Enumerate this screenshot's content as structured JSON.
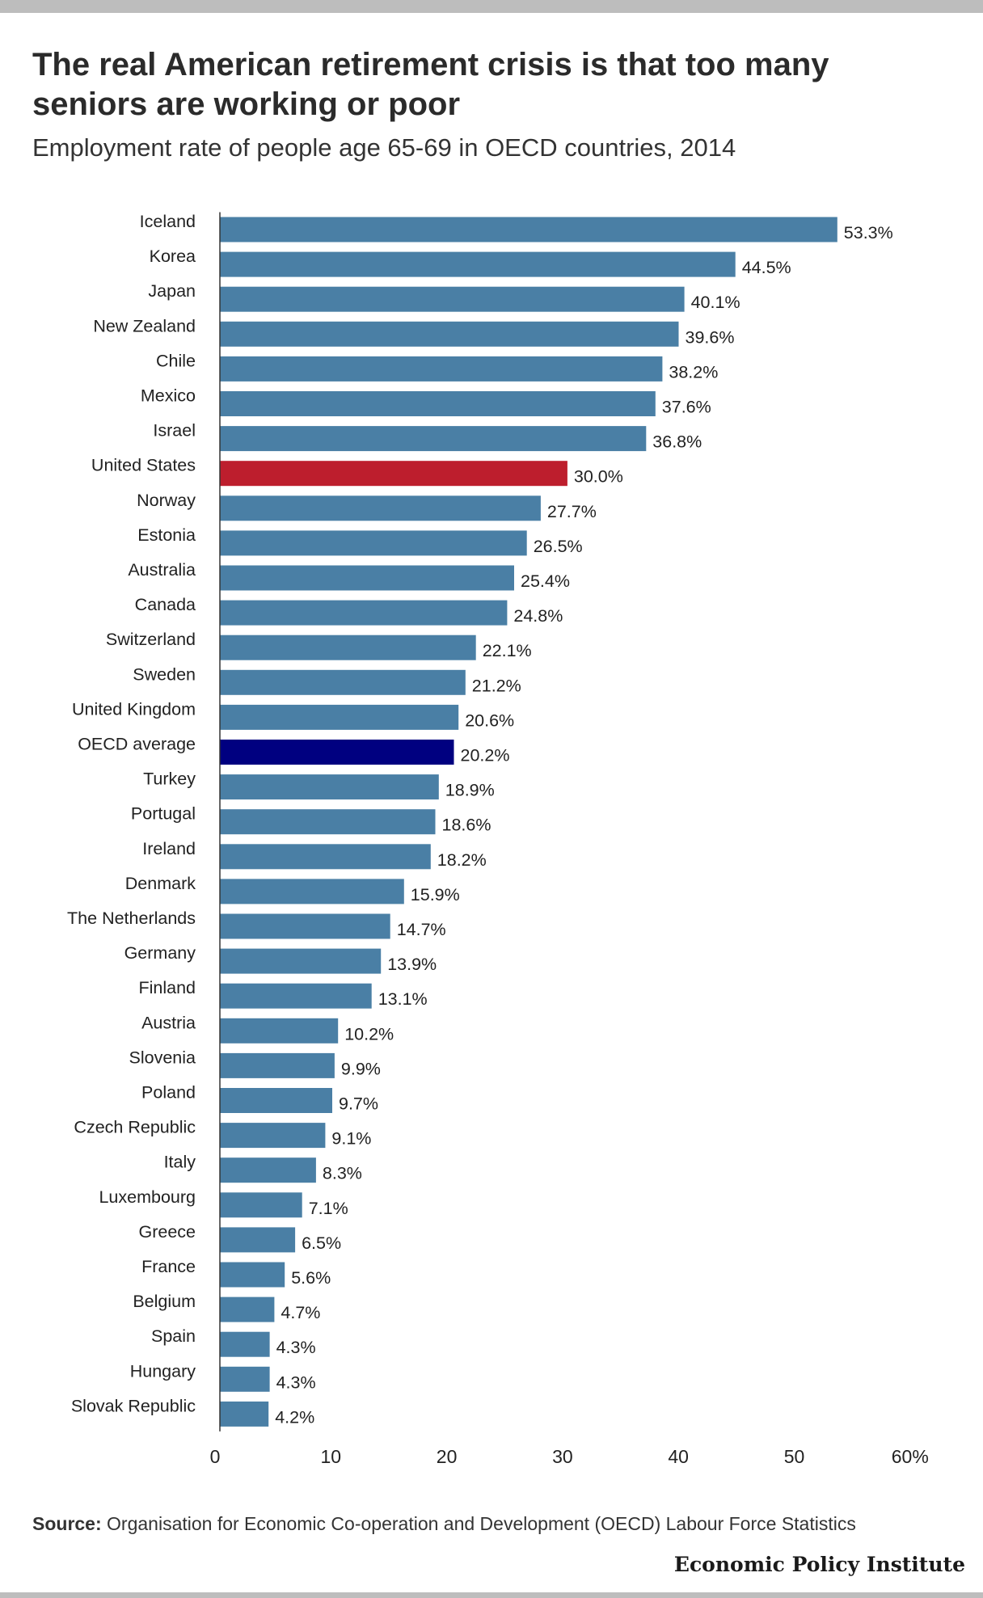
{
  "title": "The real American retirement crisis is that too many seniors are working or poor",
  "subtitle": "Employment rate of people age 65-69 in OECD countries, 2014",
  "source_label": "Source:",
  "source_text": "Organisation for Economic Co-operation and Development (OECD) Labour Force Statistics",
  "brand": "Economic Policy Institute",
  "colors": {
    "bar": "#4a7fa5",
    "highlight_us": "#bd1e2d",
    "highlight_oecd": "#000080",
    "text": "#222222"
  },
  "chart_data": {
    "type": "bar",
    "orientation": "horizontal",
    "title": "The real American retirement crisis is that too many seniors are working or poor",
    "subtitle": "Employment rate of people age 65-69 in OECD countries, 2014",
    "xlabel": "",
    "ylabel": "",
    "xlim": [
      0,
      60
    ],
    "x_ticks": [
      {
        "value": 0,
        "label": "0"
      },
      {
        "value": 10,
        "label": "10"
      },
      {
        "value": 20,
        "label": "20"
      },
      {
        "value": 30,
        "label": "30"
      },
      {
        "value": 40,
        "label": "40"
      },
      {
        "value": 50,
        "label": "50"
      },
      {
        "value": 60,
        "label": "60%"
      }
    ],
    "grid": false,
    "legend": "none",
    "categories": [
      "Iceland",
      "Korea",
      "Japan",
      "New Zealand",
      "Chile",
      "Mexico",
      "Israel",
      "United States",
      "Norway",
      "Estonia",
      "Australia",
      "Canada",
      "Switzerland",
      "Sweden",
      "United Kingdom",
      "OECD average",
      "Turkey",
      "Portugal",
      "Ireland",
      "Denmark",
      "The Netherlands",
      "Germany",
      "Finland",
      "Austria",
      "Slovenia",
      "Poland",
      "Czech Republic",
      "Italy",
      "Luxembourg",
      "Greece",
      "France",
      "Belgium",
      "Spain",
      "Hungary",
      "Slovak Republic"
    ],
    "values": [
      53.3,
      44.5,
      40.1,
      39.6,
      38.2,
      37.6,
      36.8,
      30.0,
      27.7,
      26.5,
      25.4,
      24.8,
      22.1,
      21.2,
      20.6,
      20.2,
      18.9,
      18.6,
      18.2,
      15.9,
      14.7,
      13.9,
      13.1,
      10.2,
      9.9,
      9.7,
      9.1,
      8.3,
      7.1,
      6.5,
      5.6,
      4.7,
      4.3,
      4.3,
      4.2
    ],
    "value_labels": [
      "53.3%",
      "44.5%",
      "40.1%",
      "39.6%",
      "38.2%",
      "37.6%",
      "36.8%",
      "30.0%",
      "27.7%",
      "26.5%",
      "25.4%",
      "24.8%",
      "22.1%",
      "21.2%",
      "20.6%",
      "20.2%",
      "18.9%",
      "18.6%",
      "18.2%",
      "15.9%",
      "14.7%",
      "13.9%",
      "13.1%",
      "10.2%",
      "9.9%",
      "9.7%",
      "9.1%",
      "8.3%",
      "7.1%",
      "6.5%",
      "5.6%",
      "4.7%",
      "4.3%",
      "4.3%",
      "4.2%"
    ],
    "highlights": {
      "United States": "#bd1e2d",
      "OECD average": "#000080"
    }
  }
}
